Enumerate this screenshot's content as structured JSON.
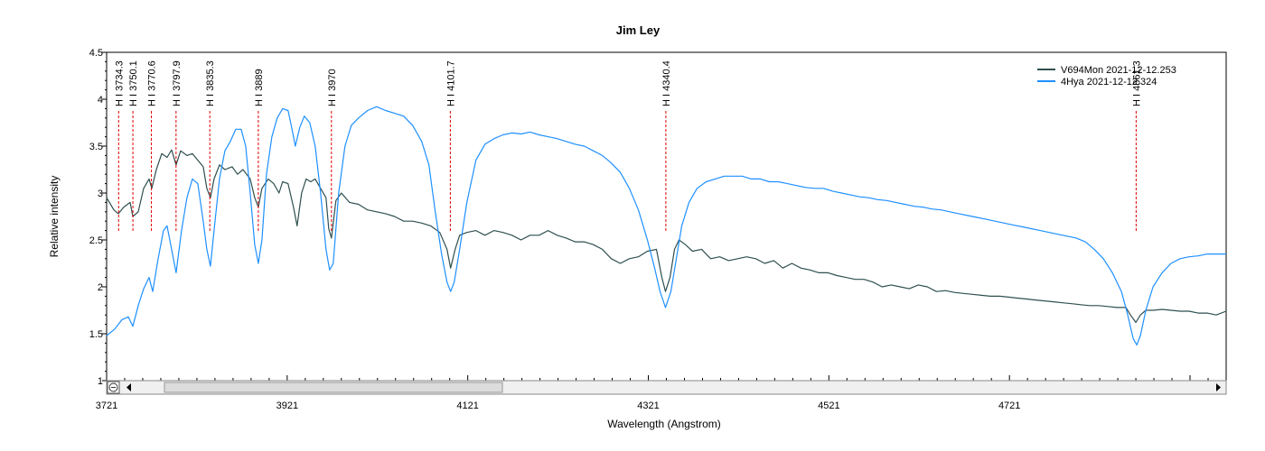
{
  "chart_data": {
    "type": "line",
    "title": "Jim Ley",
    "xlabel": "Wavelength (Angstrom)",
    "ylabel": "Relative intensity",
    "xlim": [
      3721,
      4961
    ],
    "ylim": [
      1,
      4.5
    ],
    "x_ticks": [
      3721,
      3921,
      4121,
      4321,
      4521,
      4721
    ],
    "y_ticks": [
      "1",
      "1.5",
      "2",
      "2.5",
      "3",
      "3.5",
      "4",
      "4.5"
    ],
    "grid": false,
    "legend_position": "top-right",
    "series": [
      {
        "name": "V694Mon  2021-12-12.253",
        "color": "#2f4f4f",
        "points": [
          [
            3721,
            2.95
          ],
          [
            3729,
            2.82
          ],
          [
            3734,
            2.78
          ],
          [
            3740,
            2.85
          ],
          [
            3747,
            2.9
          ],
          [
            3750,
            2.75
          ],
          [
            3756,
            2.8
          ],
          [
            3762,
            3.05
          ],
          [
            3768,
            3.15
          ],
          [
            3771,
            3.05
          ],
          [
            3776,
            3.25
          ],
          [
            3782,
            3.42
          ],
          [
            3788,
            3.38
          ],
          [
            3793,
            3.46
          ],
          [
            3798,
            3.3
          ],
          [
            3803,
            3.45
          ],
          [
            3810,
            3.4
          ],
          [
            3816,
            3.42
          ],
          [
            3822,
            3.35
          ],
          [
            3828,
            3.28
          ],
          [
            3832,
            3.05
          ],
          [
            3836,
            2.95
          ],
          [
            3840,
            3.15
          ],
          [
            3846,
            3.3
          ],
          [
            3852,
            3.25
          ],
          [
            3860,
            3.28
          ],
          [
            3866,
            3.2
          ],
          [
            3872,
            3.25
          ],
          [
            3880,
            3.15
          ],
          [
            3885,
            2.95
          ],
          [
            3889,
            2.85
          ],
          [
            3893,
            3.05
          ],
          [
            3900,
            3.15
          ],
          [
            3906,
            3.1
          ],
          [
            3912,
            3.0
          ],
          [
            3916,
            3.12
          ],
          [
            3922,
            3.1
          ],
          [
            3928,
            2.85
          ],
          [
            3932,
            2.65
          ],
          [
            3937,
            3.0
          ],
          [
            3942,
            3.15
          ],
          [
            3947,
            3.12
          ],
          [
            3952,
            3.15
          ],
          [
            3958,
            3.05
          ],
          [
            3964,
            2.95
          ],
          [
            3967,
            2.62
          ],
          [
            3970,
            2.52
          ],
          [
            3975,
            2.92
          ],
          [
            3981,
            3.0
          ],
          [
            3990,
            2.9
          ],
          [
            4000,
            2.88
          ],
          [
            4010,
            2.82
          ],
          [
            4020,
            2.8
          ],
          [
            4030,
            2.78
          ],
          [
            4040,
            2.75
          ],
          [
            4050,
            2.7
          ],
          [
            4060,
            2.7
          ],
          [
            4070,
            2.68
          ],
          [
            4080,
            2.65
          ],
          [
            4090,
            2.58
          ],
          [
            4098,
            2.4
          ],
          [
            4102,
            2.2
          ],
          [
            4107,
            2.4
          ],
          [
            4112,
            2.55
          ],
          [
            4120,
            2.58
          ],
          [
            4130,
            2.6
          ],
          [
            4140,
            2.55
          ],
          [
            4150,
            2.6
          ],
          [
            4160,
            2.58
          ],
          [
            4170,
            2.55
          ],
          [
            4180,
            2.5
          ],
          [
            4190,
            2.55
          ],
          [
            4200,
            2.55
          ],
          [
            4210,
            2.6
          ],
          [
            4220,
            2.55
          ],
          [
            4230,
            2.52
          ],
          [
            4240,
            2.48
          ],
          [
            4250,
            2.48
          ],
          [
            4260,
            2.45
          ],
          [
            4270,
            2.4
          ],
          [
            4280,
            2.3
          ],
          [
            4290,
            2.25
          ],
          [
            4300,
            2.3
          ],
          [
            4310,
            2.32
          ],
          [
            4320,
            2.38
          ],
          [
            4330,
            2.4
          ],
          [
            4336,
            2.1
          ],
          [
            4340,
            1.95
          ],
          [
            4345,
            2.1
          ],
          [
            4350,
            2.4
          ],
          [
            4355,
            2.5
          ],
          [
            4362,
            2.45
          ],
          [
            4370,
            2.38
          ],
          [
            4380,
            2.4
          ],
          [
            4390,
            2.3
          ],
          [
            4400,
            2.32
          ],
          [
            4410,
            2.28
          ],
          [
            4420,
            2.3
          ],
          [
            4430,
            2.32
          ],
          [
            4440,
            2.3
          ],
          [
            4450,
            2.25
          ],
          [
            4460,
            2.28
          ],
          [
            4470,
            2.2
          ],
          [
            4480,
            2.25
          ],
          [
            4490,
            2.2
          ],
          [
            4500,
            2.18
          ],
          [
            4510,
            2.15
          ],
          [
            4520,
            2.15
          ],
          [
            4530,
            2.12
          ],
          [
            4540,
            2.1
          ],
          [
            4550,
            2.08
          ],
          [
            4560,
            2.08
          ],
          [
            4570,
            2.05
          ],
          [
            4580,
            2.0
          ],
          [
            4590,
            2.02
          ],
          [
            4600,
            2.0
          ],
          [
            4610,
            1.98
          ],
          [
            4620,
            2.02
          ],
          [
            4630,
            2.0
          ],
          [
            4640,
            1.95
          ],
          [
            4650,
            1.96
          ],
          [
            4660,
            1.94
          ],
          [
            4670,
            1.93
          ],
          [
            4680,
            1.92
          ],
          [
            4690,
            1.91
          ],
          [
            4700,
            1.9
          ],
          [
            4710,
            1.9
          ],
          [
            4720,
            1.89
          ],
          [
            4730,
            1.88
          ],
          [
            4740,
            1.87
          ],
          [
            4750,
            1.86
          ],
          [
            4760,
            1.85
          ],
          [
            4770,
            1.84
          ],
          [
            4780,
            1.83
          ],
          [
            4790,
            1.82
          ],
          [
            4800,
            1.81
          ],
          [
            4810,
            1.8
          ],
          [
            4820,
            1.8
          ],
          [
            4830,
            1.79
          ],
          [
            4840,
            1.78
          ],
          [
            4850,
            1.78
          ],
          [
            4855,
            1.7
          ],
          [
            4861,
            1.62
          ],
          [
            4866,
            1.7
          ],
          [
            4872,
            1.75
          ],
          [
            4880,
            1.75
          ],
          [
            4890,
            1.76
          ],
          [
            4900,
            1.75
          ],
          [
            4910,
            1.74
          ],
          [
            4920,
            1.74
          ],
          [
            4930,
            1.72
          ],
          [
            4940,
            1.72
          ],
          [
            4950,
            1.7
          ],
          [
            4961,
            1.74
          ]
        ]
      },
      {
        "name": "4Hya  2021-12-12.324",
        "color": "#1e90ff",
        "points": [
          [
            3721,
            1.48
          ],
          [
            3730,
            1.55
          ],
          [
            3738,
            1.65
          ],
          [
            3745,
            1.68
          ],
          [
            3750,
            1.58
          ],
          [
            3756,
            1.8
          ],
          [
            3762,
            1.98
          ],
          [
            3768,
            2.1
          ],
          [
            3772,
            1.95
          ],
          [
            3778,
            2.3
          ],
          [
            3784,
            2.6
          ],
          [
            3788,
            2.65
          ],
          [
            3792,
            2.45
          ],
          [
            3798,
            2.15
          ],
          [
            3804,
            2.6
          ],
          [
            3810,
            2.95
          ],
          [
            3816,
            3.15
          ],
          [
            3822,
            3.1
          ],
          [
            3828,
            2.7
          ],
          [
            3832,
            2.4
          ],
          [
            3836,
            2.22
          ],
          [
            3840,
            2.6
          ],
          [
            3846,
            3.15
          ],
          [
            3852,
            3.45
          ],
          [
            3858,
            3.55
          ],
          [
            3864,
            3.68
          ],
          [
            3870,
            3.68
          ],
          [
            3875,
            3.5
          ],
          [
            3880,
            3.0
          ],
          [
            3885,
            2.45
          ],
          [
            3889,
            2.25
          ],
          [
            3893,
            2.5
          ],
          [
            3898,
            3.2
          ],
          [
            3904,
            3.6
          ],
          [
            3910,
            3.8
          ],
          [
            3916,
            3.9
          ],
          [
            3922,
            3.88
          ],
          [
            3926,
            3.7
          ],
          [
            3930,
            3.5
          ],
          [
            3935,
            3.7
          ],
          [
            3940,
            3.82
          ],
          [
            3946,
            3.75
          ],
          [
            3952,
            3.5
          ],
          [
            3958,
            3.0
          ],
          [
            3964,
            2.4
          ],
          [
            3968,
            2.18
          ],
          [
            3972,
            2.25
          ],
          [
            3978,
            3.0
          ],
          [
            3985,
            3.5
          ],
          [
            3992,
            3.72
          ],
          [
            4000,
            3.8
          ],
          [
            4010,
            3.88
          ],
          [
            4020,
            3.92
          ],
          [
            4030,
            3.88
          ],
          [
            4040,
            3.85
          ],
          [
            4050,
            3.82
          ],
          [
            4060,
            3.72
          ],
          [
            4070,
            3.55
          ],
          [
            4078,
            3.3
          ],
          [
            4085,
            2.8
          ],
          [
            4092,
            2.35
          ],
          [
            4098,
            2.05
          ],
          [
            4102,
            1.95
          ],
          [
            4106,
            2.05
          ],
          [
            4112,
            2.4
          ],
          [
            4120,
            2.9
          ],
          [
            4130,
            3.35
          ],
          [
            4140,
            3.52
          ],
          [
            4150,
            3.58
          ],
          [
            4160,
            3.62
          ],
          [
            4170,
            3.64
          ],
          [
            4180,
            3.63
          ],
          [
            4190,
            3.65
          ],
          [
            4200,
            3.62
          ],
          [
            4210,
            3.6
          ],
          [
            4220,
            3.58
          ],
          [
            4230,
            3.55
          ],
          [
            4240,
            3.52
          ],
          [
            4250,
            3.5
          ],
          [
            4260,
            3.45
          ],
          [
            4270,
            3.4
          ],
          [
            4280,
            3.32
          ],
          [
            4290,
            3.22
          ],
          [
            4300,
            3.05
          ],
          [
            4310,
            2.82
          ],
          [
            4320,
            2.5
          ],
          [
            4328,
            2.2
          ],
          [
            4334,
            1.95
          ],
          [
            4340,
            1.78
          ],
          [
            4346,
            1.95
          ],
          [
            4352,
            2.3
          ],
          [
            4358,
            2.65
          ],
          [
            4366,
            2.9
          ],
          [
            4375,
            3.05
          ],
          [
            4385,
            3.12
          ],
          [
            4395,
            3.15
          ],
          [
            4405,
            3.18
          ],
          [
            4415,
            3.18
          ],
          [
            4425,
            3.18
          ],
          [
            4435,
            3.15
          ],
          [
            4445,
            3.15
          ],
          [
            4455,
            3.12
          ],
          [
            4465,
            3.12
          ],
          [
            4475,
            3.1
          ],
          [
            4485,
            3.08
          ],
          [
            4495,
            3.06
          ],
          [
            4505,
            3.05
          ],
          [
            4515,
            3.05
          ],
          [
            4525,
            3.02
          ],
          [
            4535,
            3.0
          ],
          [
            4545,
            2.98
          ],
          [
            4555,
            2.96
          ],
          [
            4565,
            2.95
          ],
          [
            4575,
            2.93
          ],
          [
            4585,
            2.92
          ],
          [
            4595,
            2.9
          ],
          [
            4605,
            2.88
          ],
          [
            4615,
            2.86
          ],
          [
            4625,
            2.85
          ],
          [
            4635,
            2.83
          ],
          [
            4645,
            2.82
          ],
          [
            4655,
            2.8
          ],
          [
            4665,
            2.78
          ],
          [
            4675,
            2.76
          ],
          [
            4685,
            2.74
          ],
          [
            4695,
            2.72
          ],
          [
            4705,
            2.7
          ],
          [
            4715,
            2.68
          ],
          [
            4725,
            2.66
          ],
          [
            4735,
            2.64
          ],
          [
            4745,
            2.62
          ],
          [
            4755,
            2.6
          ],
          [
            4765,
            2.58
          ],
          [
            4775,
            2.56
          ],
          [
            4785,
            2.54
          ],
          [
            4795,
            2.52
          ],
          [
            4805,
            2.48
          ],
          [
            4815,
            2.4
          ],
          [
            4825,
            2.3
          ],
          [
            4835,
            2.15
          ],
          [
            4845,
            1.95
          ],
          [
            4852,
            1.7
          ],
          [
            4858,
            1.45
          ],
          [
            4862,
            1.38
          ],
          [
            4866,
            1.48
          ],
          [
            4872,
            1.75
          ],
          [
            4880,
            2.0
          ],
          [
            4890,
            2.15
          ],
          [
            4900,
            2.25
          ],
          [
            4910,
            2.3
          ],
          [
            4920,
            2.32
          ],
          [
            4930,
            2.33
          ],
          [
            4940,
            2.35
          ],
          [
            4950,
            2.35
          ],
          [
            4961,
            2.35
          ]
        ]
      }
    ],
    "line_markers": [
      {
        "label": "H I 3734.3",
        "x": 3734.3
      },
      {
        "label": "H I 3750.1",
        "x": 3750.1
      },
      {
        "label": "H I 3770.6",
        "x": 3770.6
      },
      {
        "label": "H I 3797.9",
        "x": 3797.9
      },
      {
        "label": "H I 3835.3",
        "x": 3835.3
      },
      {
        "label": "H I 3889",
        "x": 3889
      },
      {
        "label": "H I 3970",
        "x": 3970
      },
      {
        "label": "H I 4101.7",
        "x": 4101.7
      },
      {
        "label": "H I 4340.4",
        "x": 4340.4
      },
      {
        "label": "H I 4861.3",
        "x": 4861.3
      }
    ],
    "marker_color": "#e00000"
  }
}
